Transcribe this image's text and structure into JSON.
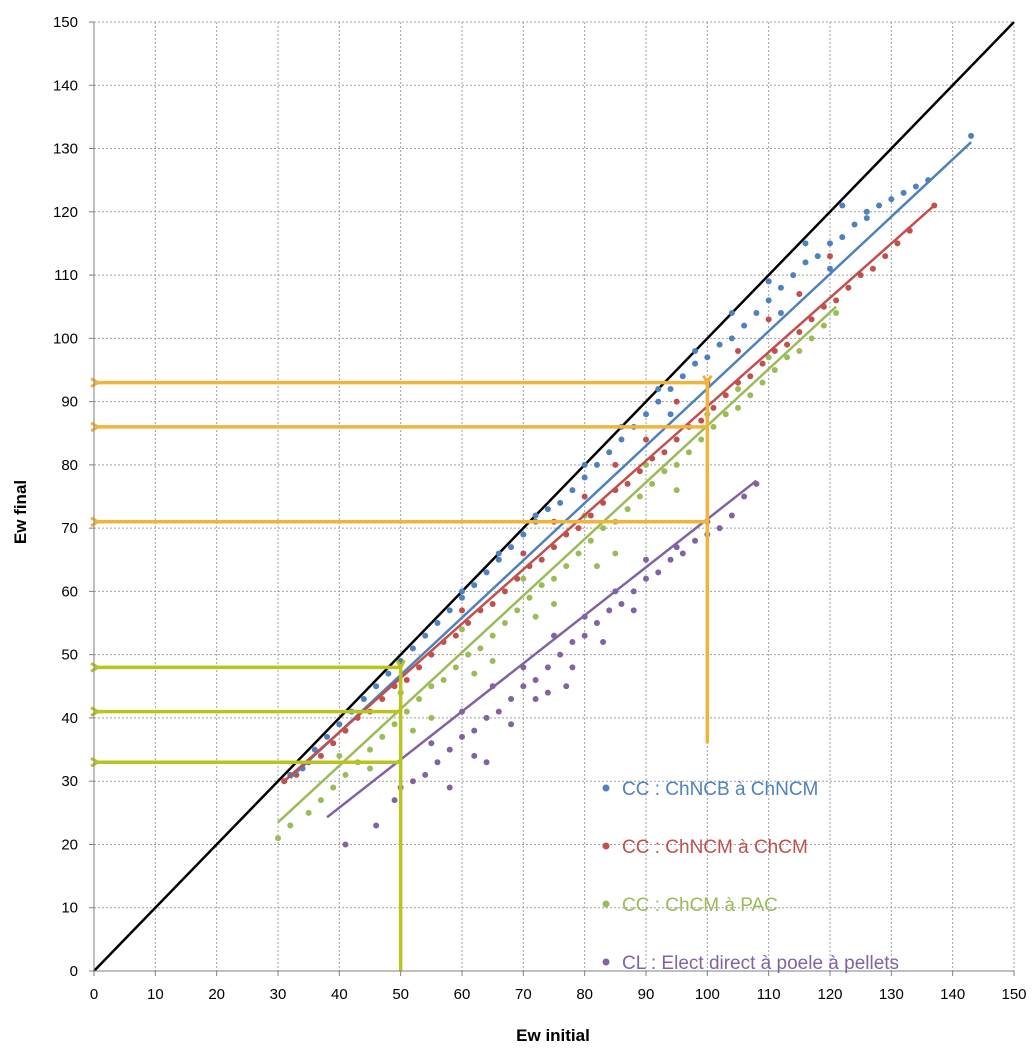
{
  "chart_data": {
    "type": "scatter",
    "title": "",
    "xlabel": "Ew initial",
    "ylabel": "Ew final",
    "xlim": [
      0,
      150
    ],
    "ylim": [
      0,
      150
    ],
    "xticks": [
      "0",
      "10",
      "20",
      "30",
      "40",
      "50",
      "60",
      "70",
      "80",
      "90",
      "100",
      "110",
      "120",
      "130",
      "140",
      "150"
    ],
    "yticks": [
      "0",
      "10",
      "20",
      "30",
      "40",
      "50",
      "60",
      "70",
      "80",
      "90",
      "100",
      "110",
      "120",
      "130",
      "140",
      "150"
    ],
    "grid": true,
    "legend_position": "bottom-right",
    "identity_line": {
      "x": [
        0,
        150
      ],
      "y": [
        0,
        150
      ],
      "color": "#000000"
    },
    "series": [
      {
        "name": "CC : ChNCB à ChNCM",
        "color": "#4f81bd",
        "trend": {
          "x": [
            32,
            143
          ],
          "y": [
            30.5,
            131
          ]
        },
        "points": [
          [
            32,
            31
          ],
          [
            34,
            32
          ],
          [
            36,
            35
          ],
          [
            38,
            37
          ],
          [
            40,
            39
          ],
          [
            42,
            41
          ],
          [
            44,
            43
          ],
          [
            46,
            45
          ],
          [
            48,
            47
          ],
          [
            50,
            49
          ],
          [
            52,
            51
          ],
          [
            54,
            53
          ],
          [
            56,
            55
          ],
          [
            58,
            57
          ],
          [
            60,
            59
          ],
          [
            62,
            61
          ],
          [
            64,
            63
          ],
          [
            66,
            65
          ],
          [
            68,
            67
          ],
          [
            70,
            69
          ],
          [
            72,
            71
          ],
          [
            74,
            73
          ],
          [
            76,
            74
          ],
          [
            78,
            76
          ],
          [
            80,
            78
          ],
          [
            82,
            80
          ],
          [
            84,
            82
          ],
          [
            86,
            84
          ],
          [
            88,
            86
          ],
          [
            90,
            88
          ],
          [
            92,
            90
          ],
          [
            94,
            92
          ],
          [
            96,
            94
          ],
          [
            98,
            96
          ],
          [
            100,
            97
          ],
          [
            102,
            99
          ],
          [
            104,
            100
          ],
          [
            106,
            102
          ],
          [
            108,
            104
          ],
          [
            110,
            106
          ],
          [
            112,
            108
          ],
          [
            114,
            110
          ],
          [
            116,
            112
          ],
          [
            118,
            113
          ],
          [
            120,
            115
          ],
          [
            122,
            116
          ],
          [
            124,
            118
          ],
          [
            126,
            120
          ],
          [
            128,
            121
          ],
          [
            130,
            122
          ],
          [
            132,
            123
          ],
          [
            134,
            124
          ],
          [
            136,
            125
          ],
          [
            143,
            132
          ],
          [
            60,
            60
          ],
          [
            66,
            66
          ],
          [
            72,
            72
          ],
          [
            80,
            80
          ],
          [
            86,
            86
          ],
          [
            92,
            92
          ],
          [
            98,
            98
          ],
          [
            104,
            104
          ],
          [
            110,
            109
          ],
          [
            116,
            115
          ],
          [
            122,
            121
          ],
          [
            126,
            119
          ],
          [
            120,
            111
          ],
          [
            112,
            104
          ],
          [
            94,
            88
          ]
        ]
      },
      {
        "name": "CC : ChNCM à ChCM",
        "color": "#c0504d",
        "trend": {
          "x": [
            31,
            137
          ],
          "y": [
            30,
            121
          ]
        },
        "points": [
          [
            31,
            30
          ],
          [
            33,
            31
          ],
          [
            35,
            33
          ],
          [
            37,
            34
          ],
          [
            39,
            36
          ],
          [
            41,
            38
          ],
          [
            43,
            40
          ],
          [
            45,
            41
          ],
          [
            47,
            43
          ],
          [
            49,
            45
          ],
          [
            51,
            46
          ],
          [
            53,
            48
          ],
          [
            55,
            50
          ],
          [
            57,
            52
          ],
          [
            59,
            53
          ],
          [
            61,
            55
          ],
          [
            63,
            57
          ],
          [
            65,
            58
          ],
          [
            67,
            60
          ],
          [
            69,
            62
          ],
          [
            71,
            64
          ],
          [
            73,
            65
          ],
          [
            75,
            67
          ],
          [
            77,
            69
          ],
          [
            79,
            70
          ],
          [
            81,
            72
          ],
          [
            83,
            74
          ],
          [
            85,
            76
          ],
          [
            87,
            77
          ],
          [
            89,
            79
          ],
          [
            91,
            81
          ],
          [
            93,
            82
          ],
          [
            95,
            84
          ],
          [
            97,
            86
          ],
          [
            99,
            87
          ],
          [
            101,
            89
          ],
          [
            103,
            91
          ],
          [
            105,
            93
          ],
          [
            107,
            94
          ],
          [
            109,
            96
          ],
          [
            111,
            98
          ],
          [
            113,
            99
          ],
          [
            115,
            101
          ],
          [
            117,
            103
          ],
          [
            119,
            105
          ],
          [
            121,
            106
          ],
          [
            123,
            108
          ],
          [
            125,
            110
          ],
          [
            127,
            111
          ],
          [
            129,
            113
          ],
          [
            131,
            115
          ],
          [
            133,
            117
          ],
          [
            137,
            121
          ],
          [
            60,
            57
          ],
          [
            70,
            66
          ],
          [
            80,
            75
          ],
          [
            90,
            84
          ],
          [
            100,
            93
          ],
          [
            110,
            103
          ],
          [
            120,
            113
          ],
          [
            75,
            71
          ],
          [
            85,
            80
          ],
          [
            95,
            90
          ],
          [
            105,
            98
          ],
          [
            115,
            107
          ]
        ]
      },
      {
        "name": "CC : ChCM à PAC",
        "color": "#9bbb59",
        "trend": {
          "x": [
            30,
            121
          ],
          "y": [
            23.5,
            105
          ]
        },
        "points": [
          [
            30,
            21
          ],
          [
            32,
            23
          ],
          [
            35,
            25
          ],
          [
            37,
            27
          ],
          [
            39,
            29
          ],
          [
            41,
            31
          ],
          [
            43,
            33
          ],
          [
            45,
            35
          ],
          [
            47,
            37
          ],
          [
            49,
            39
          ],
          [
            51,
            41
          ],
          [
            53,
            43
          ],
          [
            55,
            45
          ],
          [
            57,
            46
          ],
          [
            59,
            48
          ],
          [
            61,
            50
          ],
          [
            63,
            51
          ],
          [
            65,
            53
          ],
          [
            67,
            55
          ],
          [
            69,
            57
          ],
          [
            71,
            59
          ],
          [
            73,
            61
          ],
          [
            75,
            62
          ],
          [
            77,
            64
          ],
          [
            79,
            66
          ],
          [
            81,
            68
          ],
          [
            83,
            70
          ],
          [
            85,
            71
          ],
          [
            87,
            73
          ],
          [
            89,
            75
          ],
          [
            91,
            77
          ],
          [
            93,
            79
          ],
          [
            95,
            80
          ],
          [
            97,
            82
          ],
          [
            99,
            84
          ],
          [
            101,
            86
          ],
          [
            103,
            88
          ],
          [
            105,
            89
          ],
          [
            107,
            91
          ],
          [
            109,
            93
          ],
          [
            111,
            95
          ],
          [
            113,
            97
          ],
          [
            115,
            98
          ],
          [
            117,
            100
          ],
          [
            119,
            102
          ],
          [
            121,
            104
          ],
          [
            40,
            34
          ],
          [
            50,
            44
          ],
          [
            60,
            54
          ],
          [
            70,
            62
          ],
          [
            80,
            72
          ],
          [
            90,
            80
          ],
          [
            100,
            88
          ],
          [
            110,
            97
          ],
          [
            55,
            40
          ],
          [
            65,
            49
          ],
          [
            75,
            58
          ],
          [
            85,
            66
          ],
          [
            95,
            76
          ],
          [
            105,
            92
          ],
          [
            45,
            32
          ],
          [
            52,
            38
          ],
          [
            62,
            47
          ],
          [
            72,
            56
          ],
          [
            82,
            64
          ]
        ]
      },
      {
        "name": "CL : Elect direct à poele à pellets",
        "color": "#8064a2",
        "trend": {
          "x": [
            38,
            108
          ],
          "y": [
            24.3,
            77.5
          ]
        },
        "points": [
          [
            41,
            20
          ],
          [
            46,
            23
          ],
          [
            49,
            27
          ],
          [
            50,
            29
          ],
          [
            52,
            30
          ],
          [
            54,
            31
          ],
          [
            56,
            33
          ],
          [
            58,
            35
          ],
          [
            60,
            37
          ],
          [
            62,
            38
          ],
          [
            64,
            40
          ],
          [
            66,
            41
          ],
          [
            68,
            43
          ],
          [
            70,
            45
          ],
          [
            72,
            46
          ],
          [
            74,
            48
          ],
          [
            76,
            50
          ],
          [
            78,
            52
          ],
          [
            80,
            53
          ],
          [
            82,
            55
          ],
          [
            84,
            57
          ],
          [
            86,
            58
          ],
          [
            88,
            60
          ],
          [
            90,
            62
          ],
          [
            92,
            63
          ],
          [
            94,
            65
          ],
          [
            96,
            66
          ],
          [
            98,
            68
          ],
          [
            100,
            69
          ],
          [
            102,
            70
          ],
          [
            104,
            72
          ],
          [
            106,
            75
          ],
          [
            108,
            77
          ],
          [
            55,
            36
          ],
          [
            60,
            41
          ],
          [
            65,
            45
          ],
          [
            70,
            48
          ],
          [
            75,
            53
          ],
          [
            80,
            56
          ],
          [
            85,
            60
          ],
          [
            90,
            65
          ],
          [
            95,
            67
          ],
          [
            100,
            71
          ],
          [
            62,
            34
          ],
          [
            68,
            39
          ],
          [
            74,
            44
          ],
          [
            78,
            48
          ],
          [
            83,
            52
          ],
          [
            88,
            57
          ],
          [
            58,
            29
          ],
          [
            64,
            33
          ],
          [
            72,
            43
          ],
          [
            77,
            45
          ]
        ]
      }
    ],
    "arrows": [
      {
        "color": "#f0b43c",
        "vertical": {
          "x": 100,
          "y_from": 36,
          "y_to": 93
        },
        "horizontal_y": [
          93,
          86,
          71
        ]
      },
      {
        "color": "#b8c41f",
        "vertical": {
          "x": 50,
          "y_from": 0,
          "y_to": 48
        },
        "horizontal_y": [
          48,
          41,
          33
        ]
      }
    ]
  }
}
